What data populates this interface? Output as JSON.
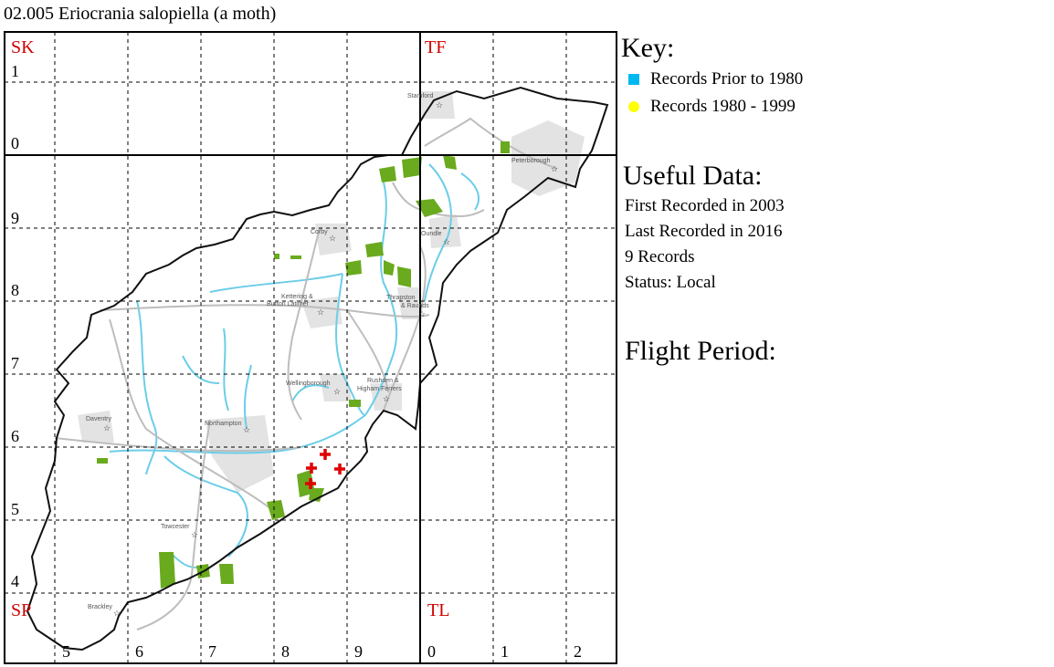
{
  "title": "02.005 Eriocrania salopiella (a moth)",
  "key": {
    "heading": "Key:",
    "items": [
      {
        "label": "Records Prior to 1980",
        "symbol": "square",
        "color": "#00b8f0"
      },
      {
        "label": "Records 1980 - 1999",
        "symbol": "circle",
        "color": "#ffff00"
      }
    ]
  },
  "useful": {
    "heading": "Useful Data:",
    "first": "First Recorded in 2003",
    "last": "Last Recorded in 2016",
    "records": "9 Records",
    "status": "Status: Local"
  },
  "flight": {
    "heading": "Flight Period:"
  },
  "grid_squares": {
    "nw": "SK",
    "ne": "TF",
    "sw": "SP",
    "se": "TL"
  },
  "easting_labels": [
    "5",
    "6",
    "7",
    "8",
    "9",
    "0",
    "1",
    "2"
  ],
  "northing_labels": [
    "1",
    "0",
    "9",
    "8",
    "7",
    "6",
    "5",
    "4"
  ],
  "towns": [
    "Stamford",
    "Peterborough",
    "Corby",
    "Oundle",
    "Kettering &",
    "Burton Latimer",
    "Thrapston",
    "& Raunds",
    "Wellingborough",
    "Rushden &",
    "Higham Ferrers",
    "Daventry",
    "Northampton",
    "Towcester",
    "Brackley"
  ],
  "record_count_shown": 4,
  "colors": {
    "record_marker": "#e00000",
    "woodland": "#6aaa1e",
    "river": "#6ccde8",
    "road": "#bdbdbd",
    "urban": "#e3e3e3"
  }
}
